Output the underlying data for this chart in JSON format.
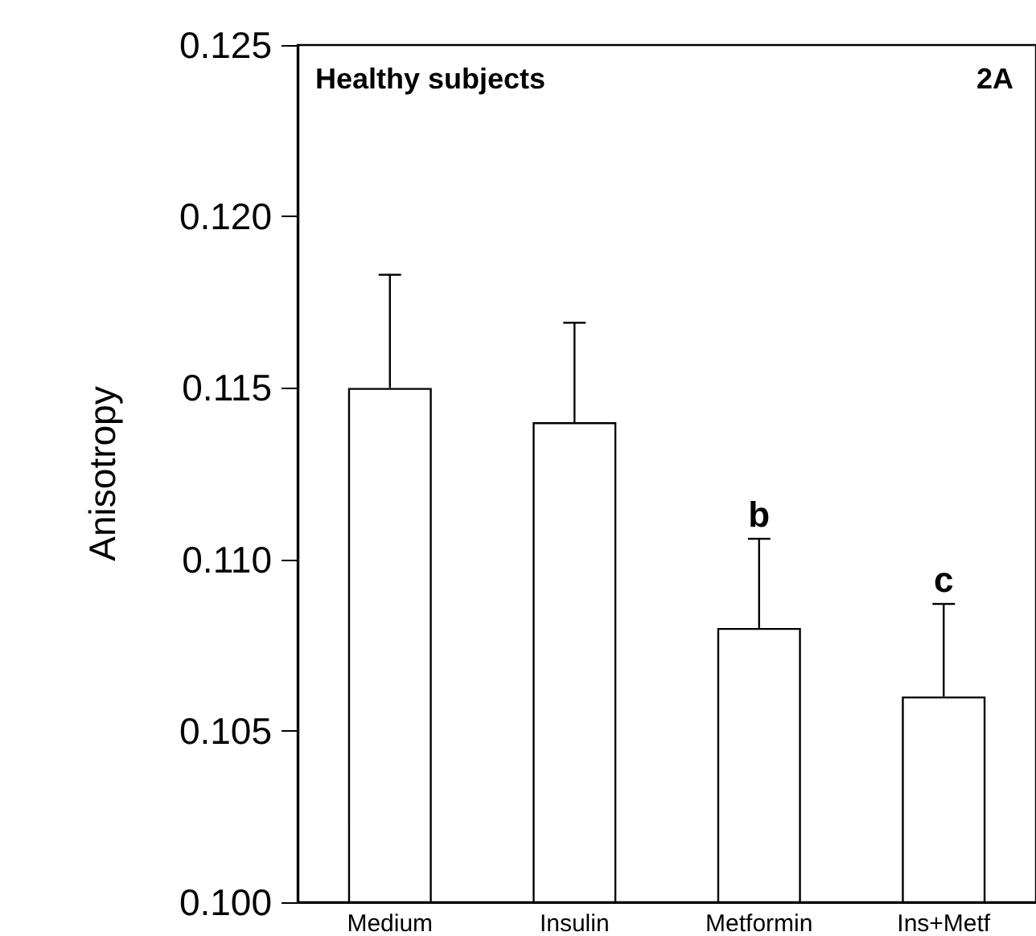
{
  "chart_data": {
    "type": "bar",
    "ylabel": "Anisotropy",
    "categories": [
      "Medium",
      "Insulin",
      "Metformin",
      "Ins+Metf"
    ],
    "values": [
      0.115,
      0.114,
      0.108,
      0.106
    ],
    "errors": [
      [
        0.115,
        0.1183
      ],
      [
        0.114,
        0.1169
      ],
      [
        0.108,
        0.1106
      ],
      [
        0.106,
        0.1087
      ]
    ],
    "color": "#ffffff",
    "ylim": [
      0.1,
      0.125
    ],
    "yticks": [
      {
        "value": 0.1,
        "label": "0.100"
      },
      {
        "value": 0.105,
        "label": "0.105"
      },
      {
        "value": 0.11,
        "label": "0.110"
      },
      {
        "value": 0.115,
        "label": "0.115"
      },
      {
        "value": 0.12,
        "label": "0.120"
      },
      {
        "value": 0.125,
        "label": "0.125"
      }
    ],
    "annotations": [
      "Healthy subjects",
      "2A",
      {
        "text": "b",
        "x": "Metformin",
        "y": 0.1106
      },
      {
        "text": "c",
        "x": "Ins+Metf",
        "y": 0.1087
      }
    ],
    "grid": false
  }
}
